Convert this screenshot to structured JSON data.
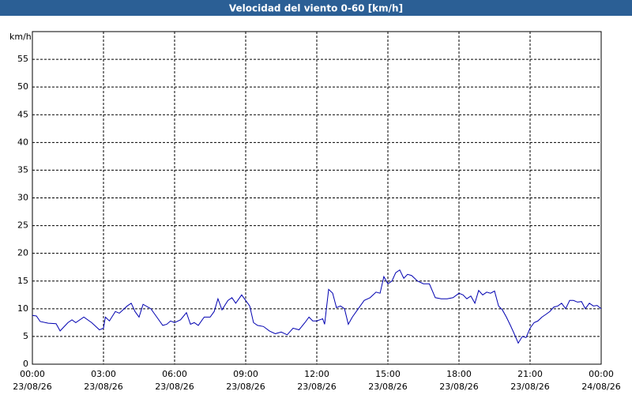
{
  "chart_data": {
    "type": "line",
    "title": "Velocidad del viento 0-60 [km/h]",
    "y_label": "km/h",
    "x": [
      0,
      0.17,
      0.33,
      0.67,
      1,
      1.17,
      1.5,
      1.67,
      1.83,
      2.17,
      2.5,
      2.83,
      3,
      3.08,
      3.25,
      3.5,
      3.67,
      4,
      4.17,
      4.33,
      4.5,
      4.67,
      5,
      5.25,
      5.5,
      5.67,
      5.83,
      6,
      6.25,
      6.5,
      6.67,
      6.83,
      7,
      7.25,
      7.5,
      7.67,
      7.83,
      8,
      8.25,
      8.42,
      8.58,
      8.83,
      9,
      9.17,
      9.33,
      9.5,
      9.75,
      10,
      10.25,
      10.5,
      10.75,
      11,
      11.25,
      11.5,
      11.67,
      11.83,
      12,
      12.25,
      12.33,
      12.5,
      12.67,
      12.83,
      13,
      13.17,
      13.33,
      13.5,
      13.75,
      14,
      14.25,
      14.5,
      14.67,
      14.83,
      15,
      15.17,
      15.33,
      15.5,
      15.67,
      15.83,
      16,
      16.25,
      16.5,
      16.75,
      17,
      17.25,
      17.5,
      17.75,
      18,
      18.17,
      18.33,
      18.5,
      18.67,
      18.83,
      19,
      19.17,
      19.33,
      19.5,
      19.67,
      19.83,
      20,
      20.17,
      20.33,
      20.5,
      20.67,
      20.83,
      21,
      21.17,
      21.33,
      21.5,
      21.67,
      21.83,
      22,
      22.17,
      22.33,
      22.5,
      22.67,
      22.83,
      23,
      23.17,
      23.33,
      23.5,
      23.67,
      23.83,
      24
    ],
    "series": [
      {
        "name": "Velocidad del viento",
        "color": "#0000b0",
        "values": [
          8.8,
          8.7,
          7.7,
          7.4,
          7.3,
          6,
          7.5,
          8,
          7.5,
          8.5,
          7.5,
          6.2,
          6.5,
          8.5,
          7.8,
          9.5,
          9.2,
          10.5,
          11,
          9.5,
          8.5,
          10.8,
          10,
          8.5,
          7,
          7.2,
          7.8,
          7.5,
          8,
          9.3,
          7.2,
          7.5,
          7,
          8.5,
          8.5,
          9.5,
          11.8,
          9.8,
          11.5,
          12,
          11,
          12.5,
          11.5,
          10.5,
          7.5,
          7,
          6.8,
          6,
          5.5,
          5.8,
          5.3,
          6.5,
          6.2,
          7.5,
          8.5,
          7.8,
          7.8,
          8.2,
          7.2,
          13.5,
          12.8,
          10.2,
          10.5,
          10,
          7.2,
          8.5,
          10,
          11.5,
          12,
          13,
          12.8,
          15.8,
          14.5,
          15,
          16.5,
          17,
          15.5,
          16.2,
          16,
          15,
          14.5,
          14.5,
          12,
          11.8,
          11.8,
          12,
          12.8,
          12.5,
          11.8,
          12.3,
          11,
          13.3,
          12.5,
          13,
          12.8,
          13.2,
          10.5,
          9.8,
          8.5,
          7,
          5.5,
          3.8,
          5,
          4.8,
          6.5,
          7.5,
          7.8,
          8.5,
          9,
          9.5,
          10.3,
          10.5,
          11,
          10,
          11.5,
          11.5,
          11.2,
          11.3,
          10,
          11,
          10.5,
          10.6,
          10
        ]
      }
    ],
    "xlim": [
      0,
      24
    ],
    "xticks": [
      {
        "value": 0,
        "label": "00:00"
      },
      {
        "value": 3,
        "label": "03:00"
      },
      {
        "value": 6,
        "label": "06:00"
      },
      {
        "value": 9,
        "label": "09:00"
      },
      {
        "value": 12,
        "label": "12:00"
      },
      {
        "value": 15,
        "label": "15:00"
      },
      {
        "value": 18,
        "label": "18:00"
      },
      {
        "value": 21,
        "label": "21:00"
      },
      {
        "value": 24,
        "label": "00:00"
      }
    ],
    "xtick_dates": [
      "23/08/26",
      "23/08/26",
      "23/08/26",
      "23/08/26",
      "23/08/26",
      "23/08/26",
      "23/08/26",
      "23/08/26",
      "24/08/26"
    ],
    "ylim": [
      0,
      60
    ],
    "yticks": [
      0,
      5,
      10,
      15,
      20,
      25,
      30,
      35,
      40,
      45,
      50,
      55
    ],
    "grid": true
  }
}
